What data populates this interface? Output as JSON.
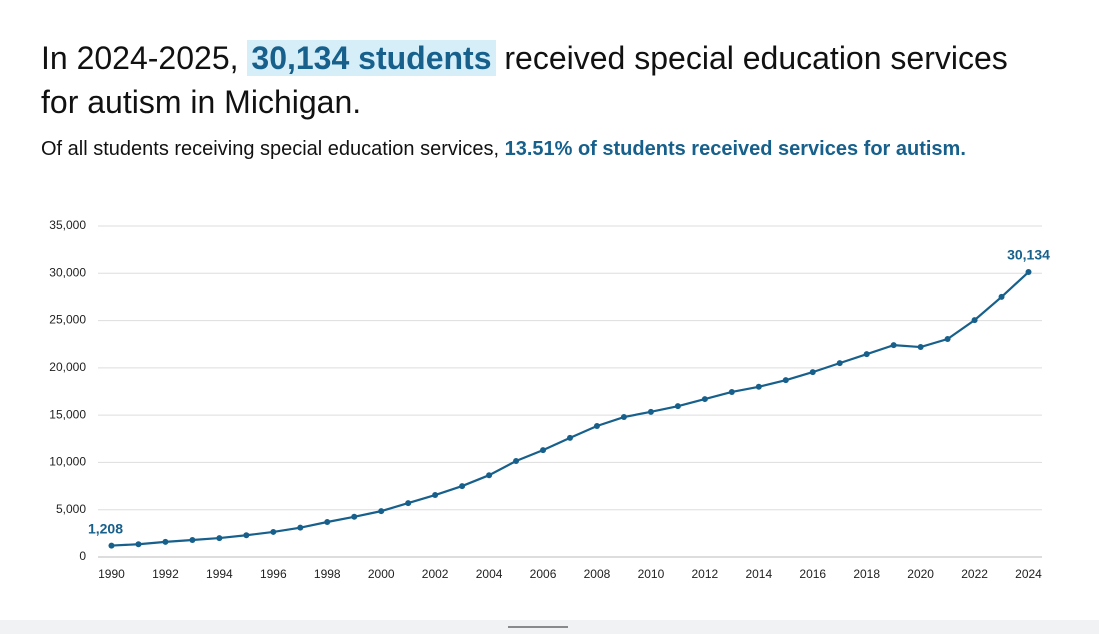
{
  "chart_data": {
    "type": "line",
    "title_parts": [
      "In 2024-2025, ",
      "30,134 students",
      " received special education services for autism in Michigan."
    ],
    "subtitle_parts": [
      "Of all students receiving special education services, ",
      "13.51% of students received services for autism."
    ],
    "x": [
      1990,
      1991,
      1992,
      1993,
      1994,
      1995,
      1996,
      1997,
      1998,
      1999,
      2000,
      2001,
      2002,
      2003,
      2004,
      2005,
      2006,
      2007,
      2008,
      2009,
      2010,
      2011,
      2012,
      2013,
      2014,
      2015,
      2016,
      2017,
      2018,
      2019,
      2020,
      2021,
      2022,
      2023,
      2024
    ],
    "values": [
      1208,
      1350,
      1600,
      1800,
      2000,
      2300,
      2650,
      3100,
      3700,
      4250,
      4850,
      5700,
      6550,
      7500,
      8650,
      10150,
      11300,
      12600,
      13850,
      14800,
      15350,
      15950,
      16700,
      17450,
      18000,
      18700,
      19550,
      20500,
      21450,
      22400,
      22200,
      23050,
      25050,
      27500,
      30134
    ],
    "value_labels": [
      "1,208",
      null,
      null,
      null,
      null,
      null,
      null,
      null,
      null,
      null,
      null,
      null,
      null,
      null,
      null,
      null,
      null,
      null,
      null,
      null,
      null,
      null,
      null,
      null,
      null,
      null,
      null,
      null,
      null,
      null,
      null,
      null,
      null,
      null,
      "30,134"
    ],
    "color": "#17608c",
    "xlim": [
      1989.5,
      2024.5
    ],
    "xticks": [
      1990,
      1992,
      1994,
      1996,
      1998,
      2000,
      2002,
      2004,
      2006,
      2008,
      2010,
      2012,
      2014,
      2016,
      2018,
      2020,
      2022,
      2024
    ],
    "ylim": [
      0,
      35000
    ],
    "yticks": [
      0,
      {
        "value": 5000,
        "label": "5,000"
      },
      {
        "value": 10000,
        "label": "10,000"
      },
      {
        "value": 15000,
        "label": "15,000"
      },
      {
        "value": 20000,
        "label": "20,000"
      },
      {
        "value": 25000,
        "label": "25,000"
      },
      {
        "value": 30000,
        "label": "30,000"
      },
      {
        "value": 35000,
        "label": "35,000"
      }
    ],
    "grid": true
  }
}
